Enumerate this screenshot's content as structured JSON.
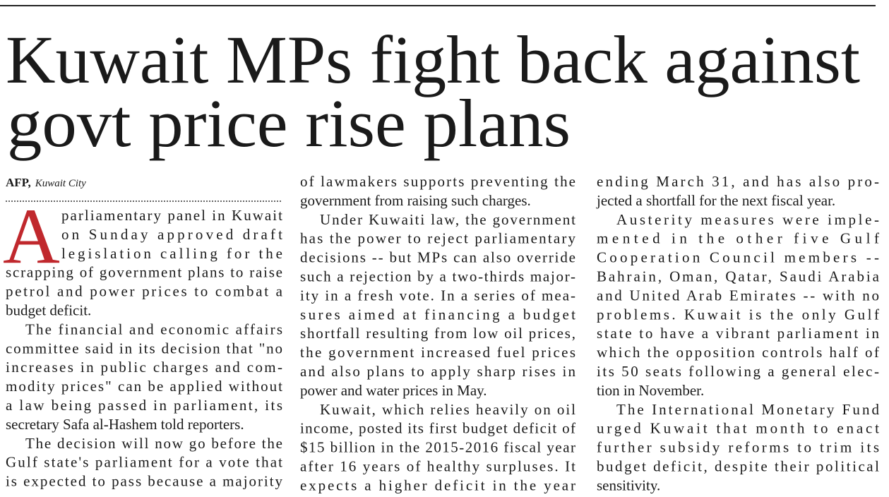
{
  "headline": {
    "lines": [
      "Kuwait MPs fight back against",
      "govt price rise plans"
    ]
  },
  "byline": {
    "agency": "AFP,",
    "location": "Kuwait City"
  },
  "drop_cap": "A",
  "columns": [
    {
      "paragraphs": [
        {
          "lines": [
            "parliamentary panel in Kuwait",
            "on Sunday approved draft",
            "legislation calling for the",
            "scrapping of government plans to raise",
            "petrol and power prices to combat a",
            "budget deficit."
          ]
        },
        {
          "lines": [
            "The financial and economic affairs",
            "committee said in its decision that \"no",
            "increases in public charges and com-",
            "modity prices\" can be applied without",
            "a law being passed in parliament, its",
            "secretary Safa al-Hashem told reporters."
          ]
        },
        {
          "lines": [
            "The decision will now go before the",
            "Gulf state's parliament for a vote that",
            "is expected to pass because a majority"
          ]
        }
      ]
    },
    {
      "paragraphs": [
        {
          "lines": [
            "of lawmakers supports preventing the",
            "government from raising such charges."
          ]
        },
        {
          "lines": [
            "Under Kuwaiti law, the government",
            "has the power to reject parliamentary",
            "decisions -- but MPs can also override",
            "such a rejection by a two-thirds major-",
            "ity in a fresh vote. In a series of mea-",
            "sures aimed at financing a budget",
            "shortfall resulting from low oil prices,",
            "the government increased fuel prices",
            "and also plans to apply sharp rises in",
            "power and water prices in May."
          ]
        },
        {
          "lines": [
            "Kuwait, which relies heavily on oil",
            "income, posted its first budget deficit of",
            "$15 billion in the 2015-2016 fiscal year",
            "after 16 years of healthy surpluses. It",
            "expects a higher deficit in the year"
          ]
        }
      ]
    },
    {
      "paragraphs": [
        {
          "lines": [
            "ending March 31, and has also pro-",
            "jected a shortfall for the next fiscal year."
          ]
        },
        {
          "lines": [
            "Austerity measures were imple-",
            "mented in the other five Gulf",
            "Cooperation Council members --",
            "Bahrain, Oman, Qatar, Saudi Arabia",
            "and United Arab Emirates -- with no",
            "problems. Kuwait is the only Gulf",
            "state to have a vibrant parliament in",
            "which the opposition controls half of",
            "its 50 seats following a general elec-",
            "tion in November."
          ]
        },
        {
          "lines": [
            "The International Monetary Fund",
            "urged Kuwait that month to enact",
            "further subsidy reforms to trim its",
            "budget deficit, despite their political",
            "sensitivity."
          ]
        }
      ]
    }
  ]
}
